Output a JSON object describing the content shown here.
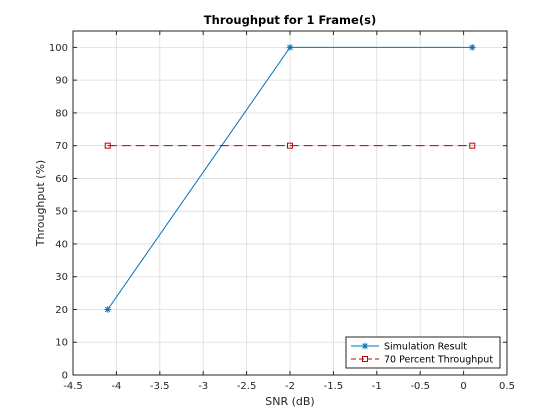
{
  "chart_data": {
    "type": "line",
    "title": "Throughput for 1 Frame(s)",
    "xlabel": "SNR (dB)",
    "ylabel": "Throughput (%)",
    "xlim": [
      -4.5,
      0.5
    ],
    "ylim": [
      0,
      105
    ],
    "xticks": [
      "-4.5",
      "-4",
      "-3.5",
      "-3",
      "-2.5",
      "-2",
      "-1.5",
      "-1",
      "-0.5",
      "0",
      "0.5"
    ],
    "yticks": [
      "0",
      "10",
      "20",
      "30",
      "40",
      "50",
      "60",
      "70",
      "80",
      "90",
      "100"
    ],
    "grid": true,
    "legend_position": "bottom-right",
    "series": [
      {
        "name": "Simulation Result",
        "x": [
          -4.1,
          -2.0,
          0.1
        ],
        "y": [
          20,
          100,
          100
        ],
        "color": "#0072BD",
        "marker": "asterisk",
        "line": "solid"
      },
      {
        "name": "70 Percent Throughput",
        "x": [
          -4.1,
          -2.0,
          0.1
        ],
        "y": [
          70,
          70,
          70
        ],
        "color": "#C00000",
        "marker": "square",
        "line": "dashed"
      }
    ]
  }
}
